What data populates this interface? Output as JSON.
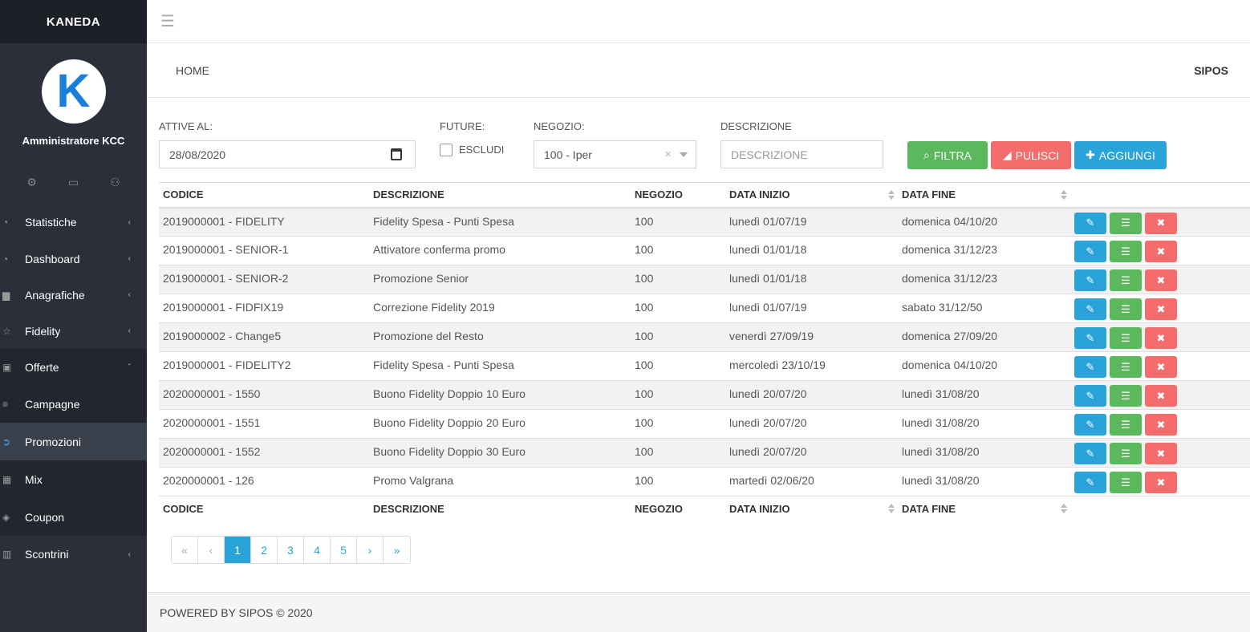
{
  "app": {
    "brand": "KANEDA",
    "user": "Amministratore KCC",
    "avatar_letter": "K",
    "brand_color": "#1a7fd9"
  },
  "profile_icons": [
    "gear-icon",
    "chat-icon",
    "user-icon"
  ],
  "menu": [
    {
      "label": "Statistiche",
      "icon": "speedometer-icon",
      "chevron": "‹"
    },
    {
      "label": "Dashboard",
      "icon": "speedometer-icon",
      "chevron": "‹"
    },
    {
      "label": "Anagrafiche",
      "icon": "inbox-icon",
      "chevron": "‹"
    },
    {
      "label": "Fidelity",
      "icon": "star-icon",
      "chevron": "‹"
    },
    {
      "label": "Offerte",
      "icon": "money-icon",
      "chevron": "ˇ"
    },
    {
      "label": "Campagne",
      "icon": "align-left-icon",
      "chevron": ""
    },
    {
      "label": "Promozioni",
      "icon": "circle-arrow-icon",
      "chevron": "",
      "active": true
    },
    {
      "label": "Mix",
      "icon": "table-icon",
      "chevron": ""
    },
    {
      "label": "Coupon",
      "icon": "tag-icon",
      "chevron": ""
    },
    {
      "label": "Scontrini",
      "icon": "barcode-icon",
      "chevron": "‹"
    }
  ],
  "breadcrumb": {
    "home": "HOME",
    "right": "SIPOS"
  },
  "filters": {
    "active_label": "ATTIVE AL:",
    "active_value": "28/08/2020",
    "future_label": "FUTURE:",
    "exclude_label": "ESCLUDI",
    "store_label": "NEGOZIO:",
    "store_value": "100 - Iper",
    "desc_label": "DESCRIZIONE",
    "desc_placeholder": "DESCRIZIONE",
    "filter_button": "FILTRA",
    "clear_button": "PULISCI",
    "add_button": "AGGIUNGI"
  },
  "table": {
    "columns": [
      "CODICE",
      "DESCRIZIONE",
      "NEGOZIO",
      "DATA INIZIO",
      "DATA FINE"
    ],
    "rows": [
      [
        "2019000001 - FIDELITY",
        "Fidelity Spesa - Punti Spesa",
        "100",
        "lunedì 01/07/19",
        "domenica 04/10/20"
      ],
      [
        "2019000001 - SENIOR-1",
        "Attivatore conferma promo",
        "100",
        "lunedì 01/01/18",
        "domenica 31/12/23"
      ],
      [
        "2019000001 - SENIOR-2",
        "Promozione Senior",
        "100",
        "lunedì 01/01/18",
        "domenica 31/12/23"
      ],
      [
        "2019000001 - FIDFIX19",
        "Correzione Fidelity 2019",
        "100",
        "lunedì 01/07/19",
        "sabato 31/12/50"
      ],
      [
        "2019000002 - Change5",
        "Promozione del Resto",
        "100",
        "venerdì 27/09/19",
        "domenica 27/09/20"
      ],
      [
        "2019000001 - FIDELITY2",
        "Fidelity Spesa - Punti Spesa",
        "100",
        "mercoledì 23/10/19",
        "domenica 04/10/20"
      ],
      [
        "2020000001 - 1550",
        "Buono Fidelity Doppio 10 Euro",
        "100",
        "lunedì 20/07/20",
        "lunedì 31/08/20"
      ],
      [
        "2020000001 - 1551",
        "Buono Fidelity Doppio 20 Euro",
        "100",
        "lunedì 20/07/20",
        "lunedì 31/08/20"
      ],
      [
        "2020000001 - 1552",
        "Buono Fidelity Doppio 30 Euro",
        "100",
        "lunedì 20/07/20",
        "lunedì 31/08/20"
      ],
      [
        "2020000001 - 126",
        "Promo Valgrana",
        "100",
        "martedì 02/06/20",
        "lunedì 31/08/20"
      ]
    ]
  },
  "pagination": {
    "first": "«",
    "prev": "‹",
    "pages": [
      "1",
      "2",
      "3",
      "4",
      "5"
    ],
    "current": "1",
    "next": "›",
    "last": "»"
  },
  "footer": "POWERED BY SIPOS © 2020",
  "colors": {
    "sidebar": "#2a2f3a",
    "blue": "#2aa3d8",
    "green": "#5cb85c",
    "red": "#f56c6c"
  }
}
